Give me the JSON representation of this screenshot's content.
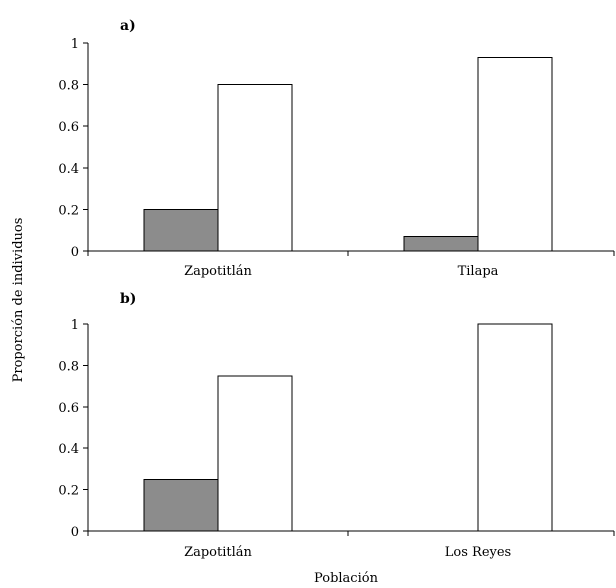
{
  "ylabel": "Proporción de individuos",
  "xlabel": "Población",
  "colors": {
    "series_a": "#8c8c8c",
    "series_b": "#ffffff",
    "outline": "#000000"
  },
  "chart_data": [
    {
      "type": "bar",
      "panel_label": "a)",
      "categories": [
        "Zapotitlán",
        "Tilapa"
      ],
      "series": [
        {
          "values": [
            0.2,
            0.07
          ],
          "color": "#8c8c8c"
        },
        {
          "values": [
            0.8,
            0.93
          ],
          "color": "#ffffff"
        }
      ],
      "ylim": [
        0,
        1
      ],
      "yticks": [
        0,
        0.2,
        0.4,
        0.6,
        0.8,
        1
      ],
      "ytick_labels": [
        "0",
        "0.2",
        "0.4",
        "0.6",
        "0.8",
        "1"
      ],
      "grid": false
    },
    {
      "type": "bar",
      "panel_label": "b)",
      "categories": [
        "Zapotitlán",
        "Los Reyes"
      ],
      "series": [
        {
          "values": [
            0.25,
            0
          ],
          "color": "#8c8c8c"
        },
        {
          "values": [
            0.75,
            1.0
          ],
          "color": "#ffffff"
        }
      ],
      "ylim": [
        0,
        1
      ],
      "yticks": [
        0,
        0.2,
        0.4,
        0.6,
        0.8,
        1
      ],
      "ytick_labels": [
        "0",
        "0.2",
        "0.4",
        "0.6",
        "0.8",
        "1"
      ],
      "grid": false
    }
  ]
}
